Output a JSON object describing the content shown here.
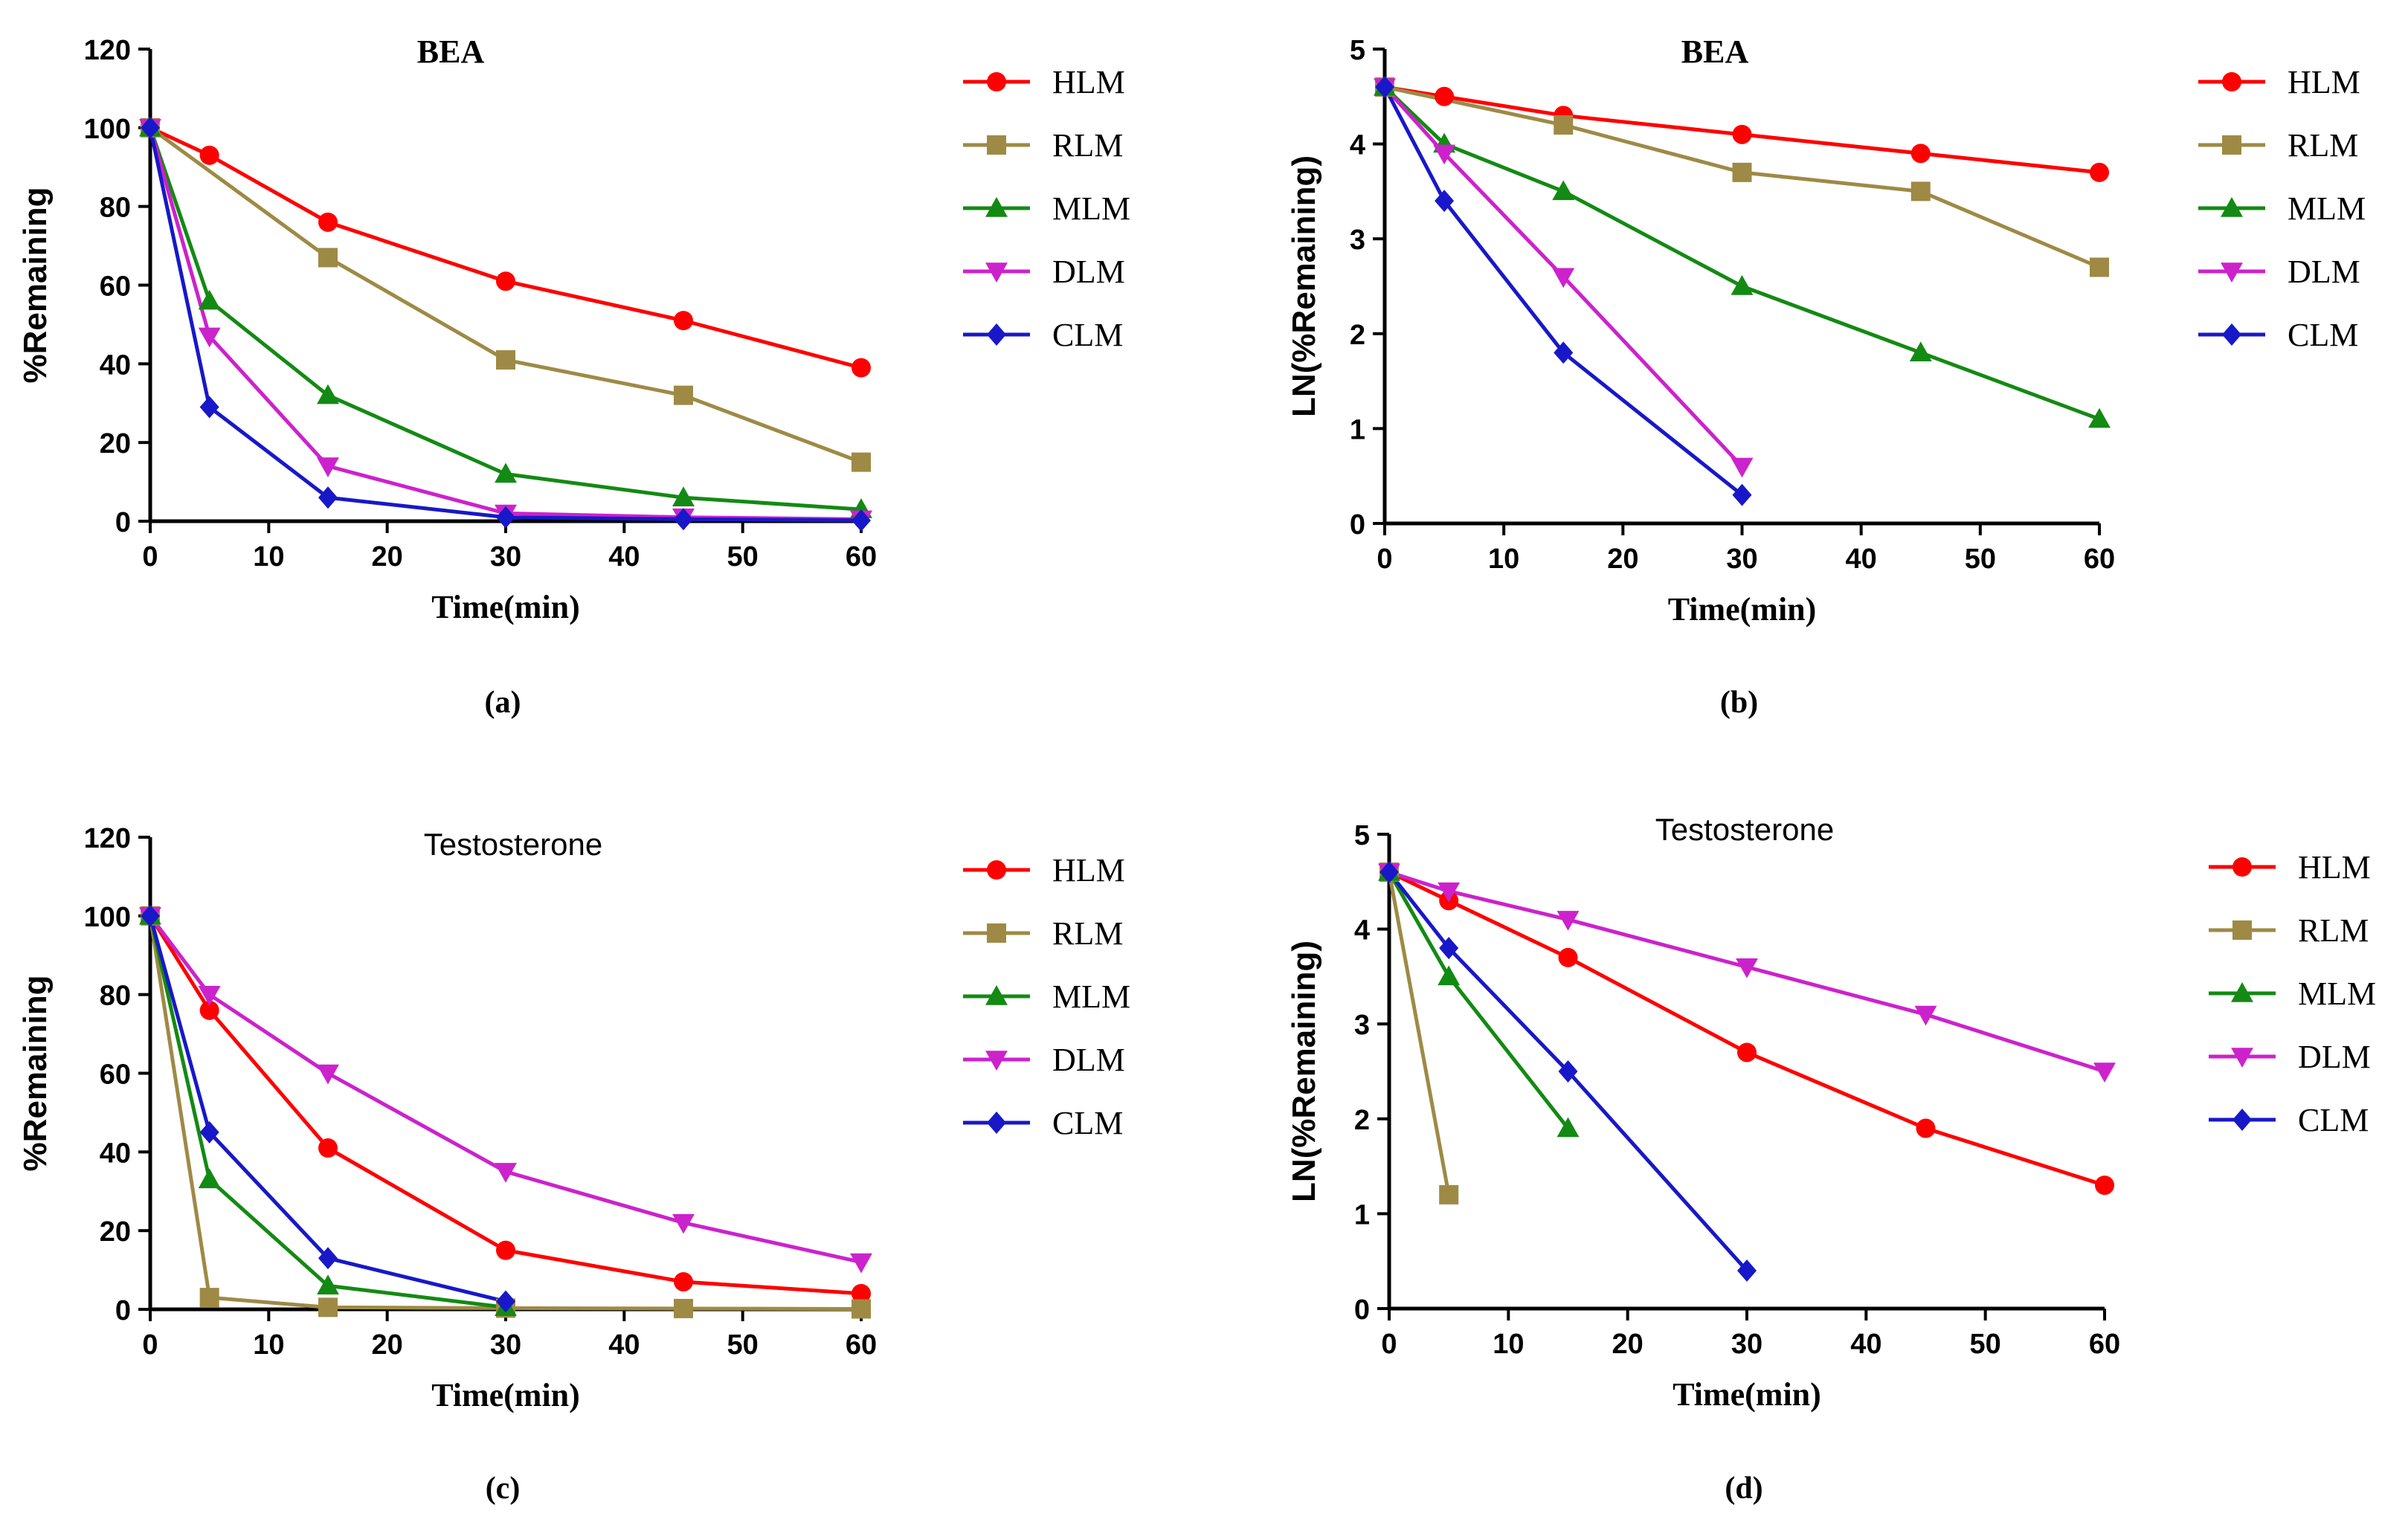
{
  "chart_data": [
    {
      "panel": "(a)",
      "type": "line",
      "title": "BEA",
      "title_style": "serif",
      "xlabel": "Time(min)",
      "ylabel": "%Remaining",
      "xlim": [
        0,
        60
      ],
      "ylim": [
        0,
        120
      ],
      "xticks": [
        0,
        10,
        20,
        30,
        40,
        50,
        60
      ],
      "yticks": [
        0,
        20,
        40,
        60,
        80,
        100,
        120
      ],
      "series": [
        {
          "name": "HLM",
          "color": "#ff0000",
          "marker": "circle",
          "x": [
            0,
            5,
            15,
            30,
            45,
            60
          ],
          "y": [
            100,
            93,
            76,
            61,
            51,
            39
          ]
        },
        {
          "name": "RLM",
          "color": "#9e8a45",
          "marker": "square",
          "x": [
            0,
            15,
            30,
            45,
            60
          ],
          "y": [
            100,
            67,
            41,
            32,
            15
          ]
        },
        {
          "name": "MLM",
          "color": "#138a13",
          "marker": "triangle-up",
          "x": [
            0,
            5,
            15,
            30,
            45,
            60
          ],
          "y": [
            100,
            56,
            32,
            12,
            6,
            3
          ]
        },
        {
          "name": "DLM",
          "color": "#cc22cc",
          "marker": "triangle-down",
          "x": [
            0,
            5,
            15,
            30,
            45,
            60
          ],
          "y": [
            100,
            47,
            14,
            2,
            1,
            0.5
          ]
        },
        {
          "name": "CLM",
          "color": "#1818c8",
          "marker": "diamond",
          "x": [
            0,
            5,
            15,
            30,
            45,
            60
          ],
          "y": [
            100,
            29,
            6,
            1,
            0.5,
            0.2
          ]
        }
      ]
    },
    {
      "panel": "(b)",
      "type": "line",
      "title": "BEA",
      "title_style": "serif",
      "xlabel": "Time(min)",
      "ylabel": "LN(%Remaining)",
      "xlim": [
        0,
        60
      ],
      "ylim": [
        0,
        5
      ],
      "xticks": [
        0,
        10,
        20,
        30,
        40,
        50,
        60
      ],
      "yticks": [
        0,
        1,
        2,
        3,
        4,
        5
      ],
      "series": [
        {
          "name": "HLM",
          "color": "#ff0000",
          "marker": "circle",
          "x": [
            0,
            5,
            15,
            30,
            45,
            60
          ],
          "y": [
            4.6,
            4.5,
            4.3,
            4.1,
            3.9,
            3.7
          ]
        },
        {
          "name": "RLM",
          "color": "#9e8a45",
          "marker": "square",
          "x": [
            0,
            15,
            30,
            45,
            60
          ],
          "y": [
            4.6,
            4.2,
            3.7,
            3.5,
            2.7
          ]
        },
        {
          "name": "MLM",
          "color": "#138a13",
          "marker": "triangle-up",
          "x": [
            0,
            5,
            15,
            30,
            45,
            60
          ],
          "y": [
            4.6,
            4.0,
            3.5,
            2.5,
            1.8,
            1.1
          ]
        },
        {
          "name": "DLM",
          "color": "#cc22cc",
          "marker": "triangle-down",
          "x": [
            0,
            5,
            15,
            30
          ],
          "y": [
            4.6,
            3.9,
            2.6,
            0.6
          ]
        },
        {
          "name": "CLM",
          "color": "#1818c8",
          "marker": "diamond",
          "x": [
            0,
            5,
            15,
            30
          ],
          "y": [
            4.6,
            3.4,
            1.8,
            0.3
          ]
        }
      ]
    },
    {
      "panel": "(c)",
      "type": "line",
      "title": "Testosterone",
      "title_style": "sans",
      "xlabel": "Time(min)",
      "ylabel": "%Remaining",
      "xlim": [
        0,
        60
      ],
      "ylim": [
        0,
        120
      ],
      "xticks": [
        0,
        10,
        20,
        30,
        40,
        50,
        60
      ],
      "yticks": [
        0,
        20,
        40,
        60,
        80,
        100,
        120
      ],
      "series": [
        {
          "name": "HLM",
          "color": "#ff0000",
          "marker": "circle",
          "x": [
            0,
            5,
            15,
            30,
            45,
            60
          ],
          "y": [
            100,
            76,
            41,
            15,
            7,
            4
          ]
        },
        {
          "name": "RLM",
          "color": "#9e8a45",
          "marker": "square",
          "x": [
            0,
            5,
            15,
            30,
            45,
            60
          ],
          "y": [
            100,
            3,
            0.5,
            0.3,
            0.2,
            0.1
          ]
        },
        {
          "name": "MLM",
          "color": "#138a13",
          "marker": "triangle-up",
          "x": [
            0,
            5,
            15,
            30
          ],
          "y": [
            100,
            33,
            6,
            0.5
          ]
        },
        {
          "name": "DLM",
          "color": "#cc22cc",
          "marker": "triangle-down",
          "x": [
            0,
            5,
            15,
            30,
            45,
            60
          ],
          "y": [
            100,
            80,
            60,
            35,
            22,
            12
          ]
        },
        {
          "name": "CLM",
          "color": "#1818c8",
          "marker": "diamond",
          "x": [
            0,
            5,
            15,
            30
          ],
          "y": [
            100,
            45,
            13,
            2
          ]
        }
      ]
    },
    {
      "panel": "(d)",
      "type": "line",
      "title": "Testosterone",
      "title_style": "sans",
      "xlabel": "Time(min)",
      "ylabel": "LN(%Remaining)",
      "xlim": [
        0,
        60
      ],
      "ylim": [
        0,
        5
      ],
      "xticks": [
        0,
        10,
        20,
        30,
        40,
        50,
        60
      ],
      "yticks": [
        0,
        1,
        2,
        3,
        4,
        5
      ],
      "series": [
        {
          "name": "HLM",
          "color": "#ff0000",
          "marker": "circle",
          "x": [
            0,
            5,
            15,
            30,
            45,
            60
          ],
          "y": [
            4.6,
            4.3,
            3.7,
            2.7,
            1.9,
            1.3
          ]
        },
        {
          "name": "RLM",
          "color": "#9e8a45",
          "marker": "square",
          "x": [
            0,
            5
          ],
          "y": [
            4.6,
            1.2
          ]
        },
        {
          "name": "MLM",
          "color": "#138a13",
          "marker": "triangle-up",
          "x": [
            0,
            5,
            15
          ],
          "y": [
            4.6,
            3.5,
            1.9
          ]
        },
        {
          "name": "DLM",
          "color": "#cc22cc",
          "marker": "triangle-down",
          "x": [
            0,
            5,
            15,
            30,
            45,
            60
          ],
          "y": [
            4.6,
            4.4,
            4.1,
            3.6,
            3.1,
            2.5
          ]
        },
        {
          "name": "CLM",
          "color": "#1818c8",
          "marker": "diamond",
          "x": [
            0,
            5,
            15,
            30
          ],
          "y": [
            4.6,
            3.8,
            2.5,
            0.4
          ]
        }
      ]
    }
  ]
}
